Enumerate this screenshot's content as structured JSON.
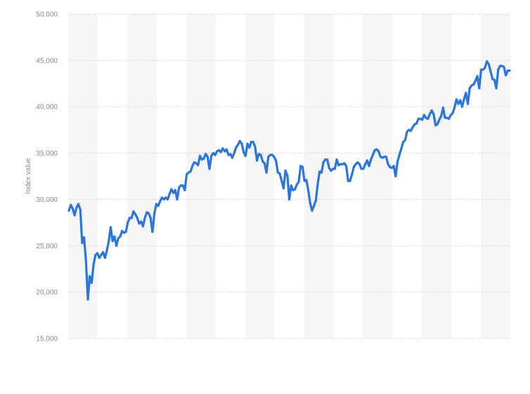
{
  "chart_data": {
    "type": "line",
    "title": "",
    "xlabel": "",
    "ylabel": "Index value",
    "ylim": [
      15000,
      50000
    ],
    "yticks": [
      15000,
      20000,
      25000,
      30000,
      35000,
      40000,
      45000,
      50000
    ],
    "ytick_labels": [
      "15,000",
      "20,000",
      "25,000",
      "30,000",
      "35,000",
      "40,000",
      "45,000",
      "50,000"
    ],
    "grid": "horizontal-dotted",
    "banding": "alternating-columns",
    "legend": "none",
    "series": [
      {
        "color": "#2a76dd",
        "values": [
          28800,
          29400,
          29000,
          28300,
          29100,
          29500,
          28900,
          25300,
          25900,
          23300,
          19200,
          21700,
          21000,
          23000,
          24000,
          24200,
          23700,
          24000,
          24300,
          23700,
          24500,
          25500,
          27000,
          25500,
          26000,
          25000,
          25800,
          26000,
          26600,
          26400,
          26500,
          27500,
          28000,
          28000,
          28700,
          28400,
          28000,
          27400,
          27600,
          27100,
          28000,
          28600,
          28500,
          28000,
          26500,
          28500,
          29500,
          29300,
          29800,
          30200,
          30000,
          30200,
          30000,
          30600,
          31100,
          30700,
          31000,
          30000,
          31300,
          31500,
          31500,
          31000,
          32700,
          32900,
          33000,
          33600,
          34000,
          33900,
          33700,
          34700,
          34300,
          34400,
          34900,
          34600,
          33300,
          34700,
          35000,
          34800,
          35200,
          35300,
          35100,
          35500,
          35200,
          35400,
          34800,
          34900,
          34500,
          35000,
          35600,
          35900,
          36300,
          36000,
          35100,
          34700,
          36000,
          35600,
          36200,
          36200,
          35700,
          34200,
          34900,
          34800,
          34100,
          33900,
          32900,
          34600,
          34800,
          34800,
          34600,
          34200,
          32900,
          32800,
          32000,
          31200,
          33100,
          32600,
          30000,
          31500,
          31000,
          31100,
          31600,
          31900,
          33600,
          33500,
          32000,
          32100,
          31000,
          29600,
          28800,
          29300,
          29900,
          31700,
          33000,
          32900,
          34000,
          34300,
          34300,
          33400,
          33100,
          33300,
          33300,
          34300,
          33700,
          33800,
          33800,
          33900,
          33600,
          32000,
          32000,
          32700,
          33500,
          33800,
          34000,
          33800,
          33300,
          33300,
          33800,
          34200,
          33600,
          34300,
          34800,
          35300,
          35400,
          35200,
          34600,
          34500,
          34600,
          34600,
          33800,
          33500,
          33400,
          33600,
          32500,
          34100,
          34800,
          35500,
          36200,
          36400,
          37300,
          37500,
          37400,
          37800,
          38100,
          38200,
          38700,
          38700,
          38600,
          39100,
          38800,
          38700,
          39200,
          39600,
          39200,
          38000,
          38100,
          38600,
          39000,
          39900,
          38800,
          38800,
          38700,
          39100,
          39300,
          39900,
          40800,
          40300,
          40700,
          40000,
          40800,
          41500,
          40300,
          42000,
          42300,
          42400,
          42800,
          43300,
          42000,
          44000,
          44000,
          44200,
          44900,
          44600,
          43800,
          43000,
          42900,
          42000,
          44000,
          44400,
          44400,
          44300,
          43400,
          43900,
          43900
        ]
      }
    ]
  }
}
